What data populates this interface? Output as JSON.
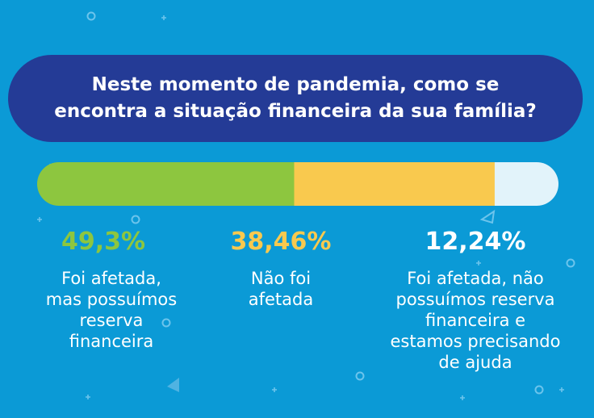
{
  "colors": {
    "background": "#0b9ad6",
    "title_pill": "#243b96",
    "green": "#8dc63f",
    "yellow": "#f9c94e",
    "light": "#e2f3fa",
    "text": "#ffffff"
  },
  "chart_data": {
    "type": "bar",
    "stacked": true,
    "orientation": "horizontal",
    "title": "Neste momento de pandemia, como se encontra a situação financeira da sua família?",
    "title_lines": [
      "Neste momento de pandemia, como se",
      "encontra a situação financeira da sua família?"
    ],
    "total": 100,
    "segments": [
      {
        "name": "Foi afetada, mas possuímos reserva financeira",
        "value": 49.3,
        "label": "49,3%",
        "label_lines": [
          "Foi afetada,",
          "mas possuímos",
          "reserva",
          "financeira"
        ],
        "color": "#8dc63f"
      },
      {
        "name": "Não foi afetada",
        "value": 38.46,
        "label": "38,46%",
        "label_lines": [
          "Não foi",
          "afetada"
        ],
        "color": "#f9c94e"
      },
      {
        "name": "Foi afetada, não possuímos reserva financeira e estamos precisando de ajuda",
        "value": 12.24,
        "label": "12,24%",
        "label_lines": [
          "Foi afetada, não",
          "possuímos reserva",
          "financeira e",
          "estamos precisando",
          "de ajuda"
        ],
        "color": "#e2f3fa"
      }
    ]
  }
}
